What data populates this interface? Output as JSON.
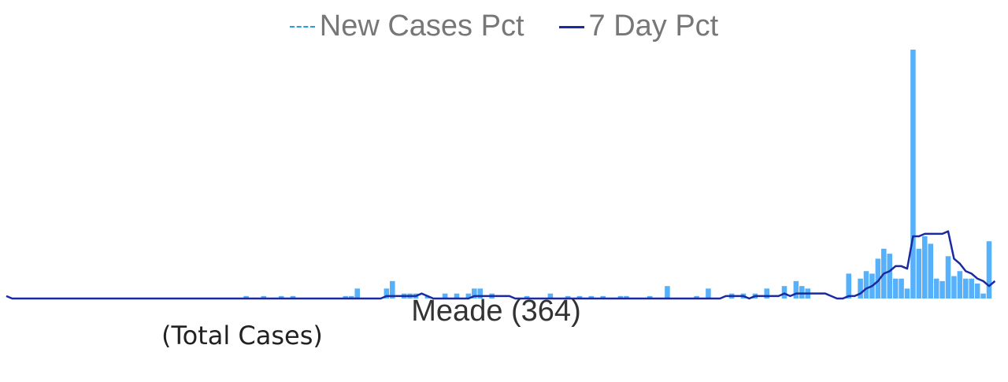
{
  "chart_data": {
    "type": "bar",
    "title": "Meade (364)",
    "subtitle": "(Total Cases)",
    "legend": {
      "placement": "top-center",
      "items": [
        {
          "label": "New Cases Pct",
          "style": "dashed",
          "color": "#2b9ae6"
        },
        {
          "label": "7 Day Pct",
          "style": "solid",
          "color": "#1a2aa0"
        }
      ]
    },
    "bar_color": "#56b0fa",
    "line_color": "#1a2aa0",
    "xlim": [
      0,
      168
    ],
    "ylim": [
      0,
      1.0
    ],
    "grid": false,
    "axes_visible": false,
    "series": [
      {
        "name": "New Cases Pct",
        "type": "bar",
        "points": [
          [
            41,
            0.01
          ],
          [
            44,
            0.01
          ],
          [
            47,
            0.01
          ],
          [
            49,
            0.01
          ],
          [
            58,
            0.01
          ],
          [
            59,
            0.01
          ],
          [
            60,
            0.04
          ],
          [
            65,
            0.04
          ],
          [
            66,
            0.07
          ],
          [
            68,
            0.02
          ],
          [
            69,
            0.02
          ],
          [
            70,
            0.02
          ],
          [
            72,
            0.01
          ],
          [
            75,
            0.02
          ],
          [
            77,
            0.02
          ],
          [
            79,
            0.02
          ],
          [
            80,
            0.04
          ],
          [
            81,
            0.04
          ],
          [
            83,
            0.02
          ],
          [
            89,
            0.01
          ],
          [
            93,
            0.02
          ],
          [
            96,
            0.01
          ],
          [
            98,
            0.01
          ],
          [
            100,
            0.01
          ],
          [
            102,
            0.01
          ],
          [
            105,
            0.01
          ],
          [
            106,
            0.01
          ],
          [
            110,
            0.01
          ],
          [
            113,
            0.05
          ],
          [
            118,
            0.01
          ],
          [
            120,
            0.04
          ],
          [
            124,
            0.02
          ],
          [
            126,
            0.02
          ],
          [
            128,
            0.02
          ],
          [
            130,
            0.04
          ],
          [
            133,
            0.05
          ],
          [
            135,
            0.07
          ],
          [
            136,
            0.05
          ],
          [
            137,
            0.04
          ],
          [
            144,
            0.1
          ],
          [
            146,
            0.08
          ],
          [
            147,
            0.11
          ],
          [
            148,
            0.1
          ],
          [
            149,
            0.16
          ],
          [
            150,
            0.2
          ],
          [
            151,
            0.18
          ],
          [
            152,
            0.08
          ],
          [
            153,
            0.08
          ],
          [
            154,
            0.04
          ],
          [
            155,
            1.0
          ],
          [
            156,
            0.2
          ],
          [
            157,
            0.25
          ],
          [
            158,
            0.22
          ],
          [
            159,
            0.08
          ],
          [
            160,
            0.07
          ],
          [
            161,
            0.17
          ],
          [
            162,
            0.09
          ],
          [
            163,
            0.11
          ],
          [
            164,
            0.08
          ],
          [
            165,
            0.08
          ],
          [
            166,
            0.06
          ],
          [
            167,
            0.02
          ],
          [
            168,
            0.23
          ]
        ]
      },
      {
        "name": "7 Day Pct",
        "type": "line",
        "points": [
          [
            0,
            0.01
          ],
          [
            1,
            0.0
          ],
          [
            64,
            0.0
          ],
          [
            65,
            0.01
          ],
          [
            70,
            0.01
          ],
          [
            71,
            0.02
          ],
          [
            72,
            0.01
          ],
          [
            73,
            0.0
          ],
          [
            79,
            0.0
          ],
          [
            80,
            0.01
          ],
          [
            86,
            0.01
          ],
          [
            87,
            0.0
          ],
          [
            122,
            0.0
          ],
          [
            123,
            0.01
          ],
          [
            126,
            0.01
          ],
          [
            127,
            0.0
          ],
          [
            128,
            0.01
          ],
          [
            132,
            0.01
          ],
          [
            133,
            0.02
          ],
          [
            134,
            0.01
          ],
          [
            135,
            0.02
          ],
          [
            140,
            0.02
          ],
          [
            141,
            0.01
          ],
          [
            142,
            0.0
          ],
          [
            143,
            0.0
          ],
          [
            144,
            0.01
          ],
          [
            145,
            0.01
          ],
          [
            146,
            0.02
          ],
          [
            147,
            0.04
          ],
          [
            148,
            0.05
          ],
          [
            149,
            0.07
          ],
          [
            150,
            0.1
          ],
          [
            151,
            0.11
          ],
          [
            152,
            0.13
          ],
          [
            153,
            0.13
          ],
          [
            154,
            0.12
          ],
          [
            155,
            0.25
          ],
          [
            156,
            0.25
          ],
          [
            157,
            0.26
          ],
          [
            158,
            0.26
          ],
          [
            159,
            0.26
          ],
          [
            160,
            0.26
          ],
          [
            161,
            0.27
          ],
          [
            162,
            0.16
          ],
          [
            163,
            0.14
          ],
          [
            164,
            0.11
          ],
          [
            165,
            0.1
          ],
          [
            166,
            0.08
          ],
          [
            167,
            0.07
          ],
          [
            168,
            0.05
          ],
          [
            169,
            0.07
          ]
        ]
      }
    ]
  }
}
